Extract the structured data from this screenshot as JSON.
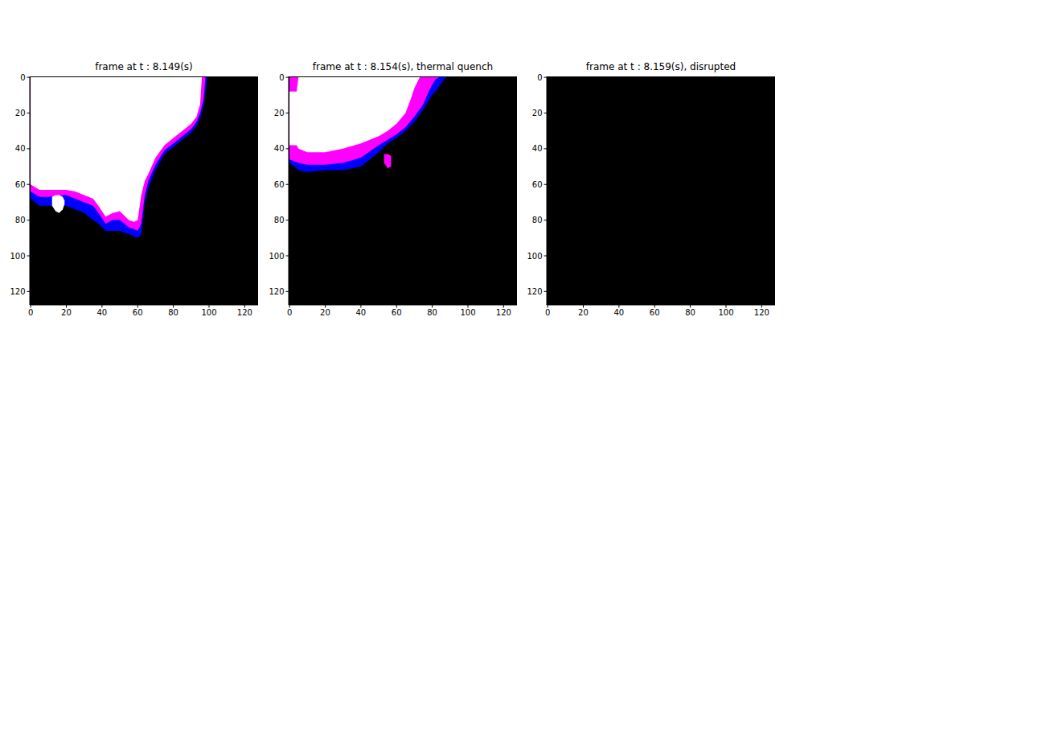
{
  "chart_data": [
    {
      "type": "image",
      "title": "frame at t : 8.149(s)",
      "color": "#000000",
      "xlim": [
        -0.5,
        127.5
      ],
      "ylim": [
        127.5,
        -0.5
      ],
      "xticks": [
        0,
        20,
        40,
        60,
        80,
        100,
        120
      ],
      "yticks": [
        0,
        20,
        40,
        60,
        80,
        100,
        120
      ],
      "regions": [
        {
          "color": "#0000ff",
          "x": [
            0,
            5,
            10,
            20,
            25,
            30,
            35,
            38,
            42,
            46,
            50,
            55,
            58,
            60,
            62,
            64,
            66,
            70,
            75,
            80,
            85,
            90,
            93,
            95,
            97,
            99
          ],
          "low": [
            0,
            0,
            0,
            0,
            0,
            0,
            0,
            0,
            0,
            0,
            0,
            0,
            0,
            0,
            0,
            0,
            0,
            0,
            0,
            0,
            0,
            0,
            0,
            0,
            0,
            0
          ],
          "high": [
            68,
            72,
            72,
            72,
            74,
            76,
            80,
            82,
            86,
            86,
            86,
            88,
            89,
            90,
            88,
            70,
            62,
            52,
            43,
            39,
            35,
            31,
            27,
            23,
            16,
            0
          ]
        },
        {
          "color": "#ff00ff",
          "x": [
            0,
            5,
            10,
            20,
            25,
            30,
            35,
            38,
            42,
            46,
            50,
            55,
            58,
            60,
            62,
            64,
            66,
            70,
            75,
            80,
            85,
            90,
            93,
            95,
            97,
            98
          ],
          "low": [
            0,
            0,
            0,
            0,
            0,
            0,
            0,
            0,
            0,
            0,
            0,
            0,
            0,
            0,
            0,
            0,
            0,
            0,
            0,
            0,
            0,
            0,
            0,
            0,
            0,
            0
          ],
          "high": [
            64,
            67,
            67,
            66,
            68,
            70,
            72,
            76,
            82,
            80,
            80,
            84,
            85,
            86,
            82,
            66,
            58,
            49,
            41,
            37,
            33,
            29,
            25,
            20,
            12,
            0
          ]
        },
        {
          "color": "#ffffff",
          "x": [
            0,
            5,
            10,
            20,
            25,
            30,
            35,
            38,
            42,
            46,
            50,
            55,
            58,
            60,
            62,
            64,
            66,
            70,
            75,
            80,
            85,
            90,
            93,
            95,
            96
          ],
          "low": [
            0,
            0,
            0,
            0,
            0,
            0,
            0,
            0,
            0,
            0,
            0,
            0,
            0,
            0,
            0,
            0,
            0,
            0,
            0,
            0,
            0,
            0,
            0,
            0,
            0
          ],
          "high": [
            60,
            63,
            63,
            63,
            64,
            66,
            68,
            72,
            78,
            76,
            75,
            80,
            81,
            80,
            66,
            58,
            54,
            45,
            38,
            34,
            30,
            26,
            22,
            15,
            0
          ]
        },
        {
          "color": "#ffffff",
          "x": [
            12,
            14,
            16,
            18,
            19
          ],
          "low": [
            67,
            66,
            66,
            67,
            69
          ],
          "high": [
            72,
            75,
            76,
            74,
            71
          ]
        }
      ]
    },
    {
      "type": "image",
      "title": "frame at t : 8.154(s), thermal quench",
      "color": "#000000",
      "xlim": [
        -0.5,
        127.5
      ],
      "ylim": [
        127.5,
        -0.5
      ],
      "xticks": [
        0,
        20,
        40,
        60,
        80,
        100,
        120
      ],
      "yticks": [
        0,
        20,
        40,
        60,
        80,
        100,
        120
      ],
      "regions": [
        {
          "color": "#0000ff",
          "x": [
            0,
            5,
            10,
            20,
            30,
            40,
            45,
            50,
            55,
            60,
            65,
            70,
            75,
            80,
            84,
            86,
            88
          ],
          "low": [
            0,
            0,
            0,
            0,
            0,
            0,
            0,
            0,
            0,
            0,
            0,
            0,
            0,
            0,
            0,
            0,
            0
          ],
          "high": [
            48,
            52,
            53,
            52,
            52,
            50,
            46,
            42,
            37,
            34,
            30,
            25,
            18,
            10,
            5,
            2,
            0
          ]
        },
        {
          "color": "#ff00ff",
          "x": [
            0,
            5,
            10,
            20,
            30,
            40,
            50,
            55,
            60,
            65,
            70,
            75,
            78,
            80,
            82,
            84
          ],
          "low": [
            0,
            0,
            0,
            0,
            0,
            0,
            0,
            0,
            0,
            0,
            0,
            0,
            0,
            0,
            0,
            0
          ],
          "high": [
            46,
            48,
            49,
            49,
            48,
            45,
            38,
            35,
            32,
            28,
            22,
            15,
            8,
            4,
            1,
            0
          ]
        },
        {
          "color": "#ffffff",
          "x": [
            0,
            4,
            5,
            10,
            20,
            30,
            40,
            50,
            55,
            60,
            65,
            68,
            70,
            72,
            73
          ],
          "low": [
            8,
            8,
            0,
            0,
            0,
            0,
            0,
            0,
            0,
            0,
            0,
            0,
            0,
            0,
            0
          ],
          "high": [
            38,
            38,
            40,
            42,
            42,
            40,
            37,
            33,
            30,
            26,
            20,
            12,
            6,
            2,
            0
          ]
        },
        {
          "color": "#ff00ff",
          "x": [
            53,
            55,
            57
          ],
          "low": [
            43,
            43,
            44
          ],
          "high": [
            48,
            51,
            50
          ]
        }
      ]
    },
    {
      "type": "image",
      "title": "frame at t : 8.159(s), disrupted",
      "color": "#000000",
      "xlim": [
        -0.5,
        127.5
      ],
      "ylim": [
        127.5,
        -0.5
      ],
      "xticks": [
        0,
        20,
        40,
        60,
        80,
        100,
        120
      ],
      "yticks": [
        0,
        20,
        40,
        60,
        80,
        100,
        120
      ],
      "regions": []
    }
  ]
}
